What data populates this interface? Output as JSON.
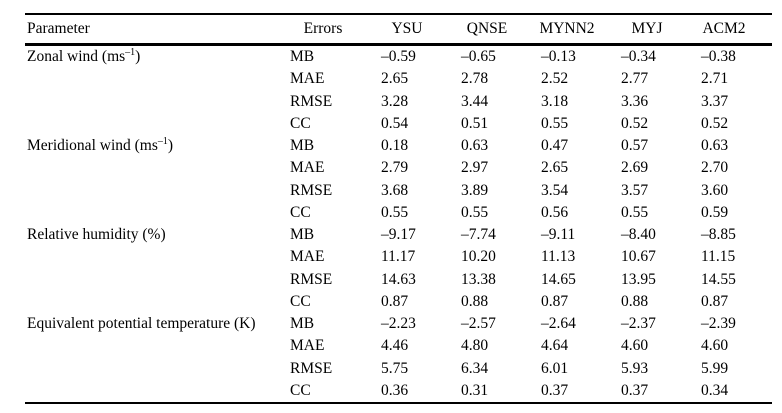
{
  "page": {
    "background": "#ffffff",
    "text_color": "#000000",
    "rule_color": "#000000"
  },
  "table": {
    "columns": [
      "Parameter",
      "Errors",
      "YSU",
      "QNSE",
      "MYNN2",
      "MYJ",
      "ACM2"
    ],
    "groups": [
      {
        "parameter": "Zonal wind (ms",
        "parameter_sup": "–1",
        "parameter_suffix": ")",
        "rows": [
          {
            "error": "MB",
            "values": [
              "–0.59",
              "–0.65",
              "–0.13",
              "–0.34",
              "–0.38"
            ]
          },
          {
            "error": "MAE",
            "values": [
              "2.65",
              "2.78",
              "2.52",
              "2.77",
              "2.71"
            ]
          },
          {
            "error": "RMSE",
            "values": [
              "3.28",
              "3.44",
              "3.18",
              "3.36",
              "3.37"
            ]
          },
          {
            "error": "CC",
            "values": [
              "0.54",
              "0.51",
              "0.55",
              "0.52",
              "0.52"
            ]
          }
        ]
      },
      {
        "parameter": "Meridional wind (ms",
        "parameter_sup": "–1",
        "parameter_suffix": ")",
        "rows": [
          {
            "error": "MB",
            "values": [
              "0.18",
              "0.63",
              "0.47",
              "0.57",
              "0.63"
            ]
          },
          {
            "error": "MAE",
            "values": [
              "2.79",
              "2.97",
              "2.65",
              "2.69",
              "2.70"
            ]
          },
          {
            "error": "RMSE",
            "values": [
              "3.68",
              "3.89",
              "3.54",
              "3.57",
              "3.60"
            ]
          },
          {
            "error": "CC",
            "values": [
              "0.55",
              "0.55",
              "0.56",
              "0.55",
              "0.59"
            ]
          }
        ]
      },
      {
        "parameter": "Relative humidity (%)",
        "parameter_sup": "",
        "parameter_suffix": "",
        "rows": [
          {
            "error": "MB",
            "values": [
              "–9.17",
              "–7.74",
              "–9.11",
              "–8.40",
              "–8.85"
            ]
          },
          {
            "error": "MAE",
            "values": [
              "11.17",
              "10.20",
              "11.13",
              "10.67",
              "11.15"
            ]
          },
          {
            "error": "RMSE",
            "values": [
              "14.63",
              "13.38",
              "14.65",
              "13.95",
              "14.55"
            ]
          },
          {
            "error": "CC",
            "values": [
              "0.87",
              "0.88",
              "0.87",
              "0.88",
              "0.87"
            ]
          }
        ]
      },
      {
        "parameter": "Equivalent potential temperature (K)",
        "parameter_sup": "",
        "parameter_suffix": "",
        "rows": [
          {
            "error": "MB",
            "values": [
              "–2.23",
              "–2.57",
              "–2.64",
              "–2.37",
              "–2.39"
            ]
          },
          {
            "error": "MAE",
            "values": [
              "4.46",
              "4.80",
              "4.64",
              "4.60",
              "4.60"
            ]
          },
          {
            "error": "RMSE",
            "values": [
              "5.75",
              "6.34",
              "6.01",
              "5.93",
              "5.99"
            ]
          },
          {
            "error": "CC",
            "values": [
              "0.36",
              "0.31",
              "0.37",
              "0.37",
              "0.34"
            ]
          }
        ]
      }
    ]
  }
}
